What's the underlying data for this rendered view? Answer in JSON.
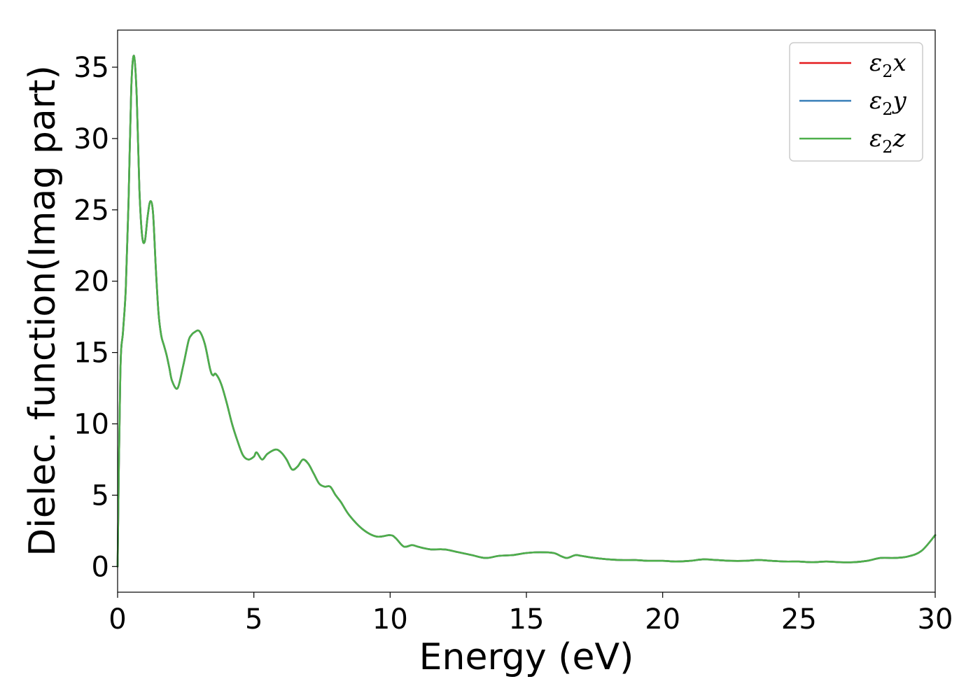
{
  "chart_data": {
    "type": "line",
    "title": "",
    "xlabel": "Energy (eV)",
    "ylabel": "Dielec. function(Imag part)",
    "xlim": [
      0,
      30
    ],
    "ylim": [
      -1.8,
      37.6
    ],
    "xticks": [
      0,
      5,
      10,
      15,
      20,
      25,
      30
    ],
    "yticks": [
      0,
      5,
      10,
      15,
      20,
      25,
      30,
      35
    ],
    "grid": false,
    "legend_position": "top-right",
    "x": [
      0,
      0.1,
      0.2,
      0.3,
      0.4,
      0.5,
      0.6,
      0.7,
      0.8,
      0.9,
      1.0,
      1.1,
      1.2,
      1.3,
      1.4,
      1.5,
      1.6,
      1.7,
      1.8,
      1.9,
      2.0,
      2.2,
      2.4,
      2.6,
      2.7,
      2.8,
      3.0,
      3.2,
      3.4,
      3.5,
      3.6,
      3.8,
      4.0,
      4.2,
      4.4,
      4.6,
      4.8,
      5.0,
      5.1,
      5.3,
      5.5,
      5.8,
      6.0,
      6.2,
      6.4,
      6.6,
      6.8,
      7.0,
      7.2,
      7.4,
      7.6,
      7.8,
      8.0,
      8.2,
      8.5,
      9.0,
      9.5,
      10.0,
      10.2,
      10.5,
      10.8,
      11.0,
      11.2,
      11.5,
      12.0,
      12.5,
      13.0,
      13.5,
      14.0,
      14.5,
      15.0,
      15.5,
      16.0,
      16.3,
      16.5,
      16.8,
      17.0,
      17.5,
      18.0,
      18.5,
      19.0,
      19.5,
      20.0,
      20.5,
      21.0,
      21.5,
      22.0,
      22.5,
      23.0,
      23.5,
      24.0,
      24.5,
      25.0,
      25.5,
      26.0,
      26.5,
      27.0,
      27.5,
      28.0,
      28.5,
      29.0,
      29.5,
      30.0
    ],
    "series": [
      {
        "name": "ε2x",
        "color": "#e41a1c",
        "values": [
          0,
          13.5,
          16.5,
          19.5,
          25.5,
          33.5,
          35.8,
          33.0,
          26.5,
          23.2,
          22.8,
          24.5,
          25.6,
          24.8,
          21.0,
          17.8,
          16.2,
          15.5,
          14.8,
          13.9,
          13.0,
          12.5,
          14.0,
          15.8,
          16.2,
          16.4,
          16.5,
          15.6,
          13.8,
          13.4,
          13.5,
          12.8,
          11.5,
          10.0,
          8.8,
          7.8,
          7.5,
          7.7,
          8.0,
          7.5,
          7.9,
          8.2,
          8.0,
          7.5,
          6.8,
          7.0,
          7.5,
          7.2,
          6.5,
          5.8,
          5.6,
          5.6,
          5.0,
          4.5,
          3.6,
          2.6,
          2.1,
          2.2,
          2.0,
          1.4,
          1.5,
          1.4,
          1.3,
          1.2,
          1.2,
          1.0,
          0.8,
          0.6,
          0.75,
          0.8,
          0.95,
          1.0,
          0.95,
          0.7,
          0.6,
          0.8,
          0.75,
          0.6,
          0.5,
          0.45,
          0.45,
          0.4,
          0.4,
          0.35,
          0.4,
          0.5,
          0.45,
          0.4,
          0.4,
          0.45,
          0.4,
          0.35,
          0.35,
          0.3,
          0.35,
          0.3,
          0.3,
          0.4,
          0.6,
          0.6,
          0.7,
          1.1,
          2.2
        ]
      },
      {
        "name": "ε2y",
        "color": "#377eb8",
        "values": [
          0,
          13.5,
          16.5,
          19.5,
          25.5,
          33.5,
          35.8,
          33.0,
          26.5,
          23.2,
          22.8,
          24.5,
          25.6,
          24.8,
          21.0,
          17.8,
          16.2,
          15.5,
          14.8,
          13.9,
          13.0,
          12.5,
          14.0,
          15.8,
          16.2,
          16.4,
          16.5,
          15.6,
          13.8,
          13.4,
          13.5,
          12.8,
          11.5,
          10.0,
          8.8,
          7.8,
          7.5,
          7.7,
          8.0,
          7.5,
          7.9,
          8.2,
          8.0,
          7.5,
          6.8,
          7.0,
          7.5,
          7.2,
          6.5,
          5.8,
          5.6,
          5.6,
          5.0,
          4.5,
          3.6,
          2.6,
          2.1,
          2.2,
          2.0,
          1.4,
          1.5,
          1.4,
          1.3,
          1.2,
          1.2,
          1.0,
          0.8,
          0.6,
          0.75,
          0.8,
          0.95,
          1.0,
          0.95,
          0.7,
          0.6,
          0.8,
          0.75,
          0.6,
          0.5,
          0.45,
          0.45,
          0.4,
          0.4,
          0.35,
          0.4,
          0.5,
          0.45,
          0.4,
          0.4,
          0.45,
          0.4,
          0.35,
          0.35,
          0.3,
          0.35,
          0.3,
          0.3,
          0.4,
          0.6,
          0.6,
          0.7,
          1.1,
          2.2
        ]
      },
      {
        "name": "ε2z",
        "color": "#4daf4a",
        "values": [
          0,
          13.5,
          16.5,
          19.5,
          25.5,
          33.5,
          35.8,
          33.0,
          26.5,
          23.2,
          22.8,
          24.5,
          25.6,
          24.8,
          21.0,
          17.8,
          16.2,
          15.5,
          14.8,
          13.9,
          13.0,
          12.5,
          14.0,
          15.8,
          16.2,
          16.4,
          16.5,
          15.6,
          13.8,
          13.4,
          13.5,
          12.8,
          11.5,
          10.0,
          8.8,
          7.8,
          7.5,
          7.7,
          8.0,
          7.5,
          7.9,
          8.2,
          8.0,
          7.5,
          6.8,
          7.0,
          7.5,
          7.2,
          6.5,
          5.8,
          5.6,
          5.6,
          5.0,
          4.5,
          3.6,
          2.6,
          2.1,
          2.2,
          2.0,
          1.4,
          1.5,
          1.4,
          1.3,
          1.2,
          1.2,
          1.0,
          0.8,
          0.6,
          0.75,
          0.8,
          0.95,
          1.0,
          0.95,
          0.7,
          0.6,
          0.8,
          0.75,
          0.6,
          0.5,
          0.45,
          0.45,
          0.4,
          0.4,
          0.35,
          0.4,
          0.5,
          0.45,
          0.4,
          0.4,
          0.45,
          0.4,
          0.35,
          0.35,
          0.3,
          0.35,
          0.3,
          0.3,
          0.4,
          0.6,
          0.6,
          0.7,
          1.1,
          2.2
        ]
      }
    ]
  }
}
